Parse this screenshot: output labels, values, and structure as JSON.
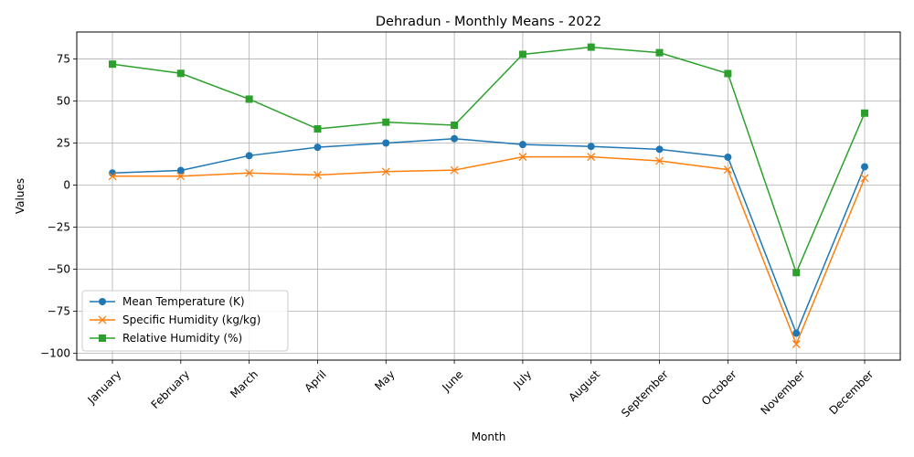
{
  "chart_data": {
    "type": "line",
    "title": "Dehradun - Monthly Means - 2022",
    "xlabel": "Month",
    "ylabel": "Values",
    "categories": [
      "January",
      "February",
      "March",
      "April",
      "May",
      "June",
      "July",
      "August",
      "September",
      "October",
      "November",
      "December"
    ],
    "ylim": [
      -104,
      91
    ],
    "yticks": [
      -100,
      -75,
      -50,
      -25,
      0,
      25,
      50,
      75
    ],
    "grid": true,
    "legend_position": "lower-left",
    "series": [
      {
        "name": "Mean Temperature (K)",
        "color": "#1f77b4",
        "marker": "circle",
        "values": [
          7.2,
          8.7,
          17.5,
          22.5,
          25.0,
          27.6,
          24.1,
          23.0,
          21.3,
          16.6,
          -88.0,
          10.9
        ]
      },
      {
        "name": "Specific Humidity (kg/kg)",
        "color": "#ff7f0e",
        "marker": "x",
        "values": [
          5.3,
          5.3,
          7.2,
          6.0,
          8.0,
          8.9,
          16.8,
          16.8,
          14.4,
          9.2,
          -94.5,
          4.2
        ]
      },
      {
        "name": "Relative Humidity (%)",
        "color": "#2ca02c",
        "marker": "square",
        "values": [
          71.9,
          66.4,
          51.1,
          33.4,
          37.4,
          35.6,
          77.7,
          82.0,
          78.7,
          66.3,
          -52.0,
          42.8
        ]
      }
    ]
  }
}
